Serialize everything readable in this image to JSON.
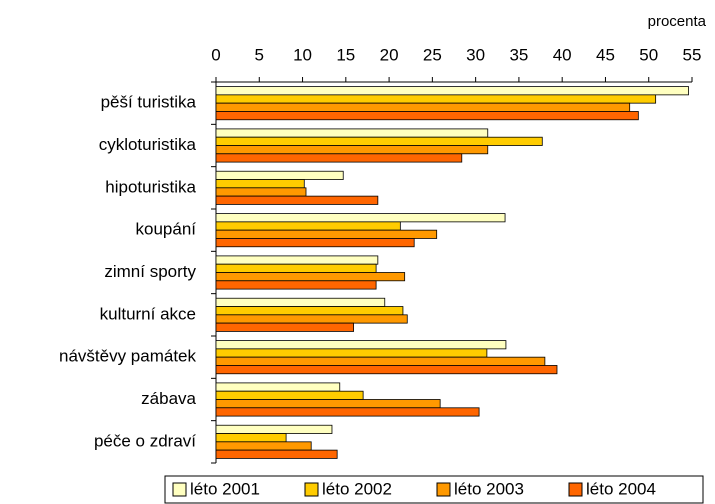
{
  "chart_data": {
    "type": "bar",
    "orientation": "horizontal",
    "x_label": "procenta",
    "categories": [
      "pěší turistika",
      "cykloturistika",
      "hipoturistika",
      "koupání",
      "zimní sporty",
      "kulturní akce",
      "návštěvy památek",
      "zábava",
      "péče o zdraví"
    ],
    "series": [
      {
        "name": "léto 2001",
        "color": "#ffffc0",
        "values": [
          54.6,
          31.4,
          14.7,
          33.4,
          18.7,
          19.5,
          33.5,
          14.3,
          13.4
        ]
      },
      {
        "name": "léto 2002",
        "color": "#ffcc00",
        "values": [
          50.8,
          37.7,
          10.2,
          21.3,
          18.5,
          21.6,
          31.3,
          17.0,
          8.1
        ]
      },
      {
        "name": "léto 2003",
        "color": "#ff9900",
        "values": [
          47.8,
          31.4,
          10.4,
          25.5,
          21.8,
          22.1,
          38.0,
          25.9,
          11.0
        ]
      },
      {
        "name": "léto 2004",
        "color": "#ff6600",
        "values": [
          48.8,
          28.4,
          18.7,
          22.9,
          18.5,
          15.9,
          39.4,
          30.4,
          14.0
        ]
      }
    ],
    "xlim": [
      0,
      55
    ],
    "xticks": [
      0,
      5,
      10,
      15,
      20,
      25,
      30,
      35,
      40,
      45,
      50,
      55
    ],
    "legend": "bottom"
  }
}
